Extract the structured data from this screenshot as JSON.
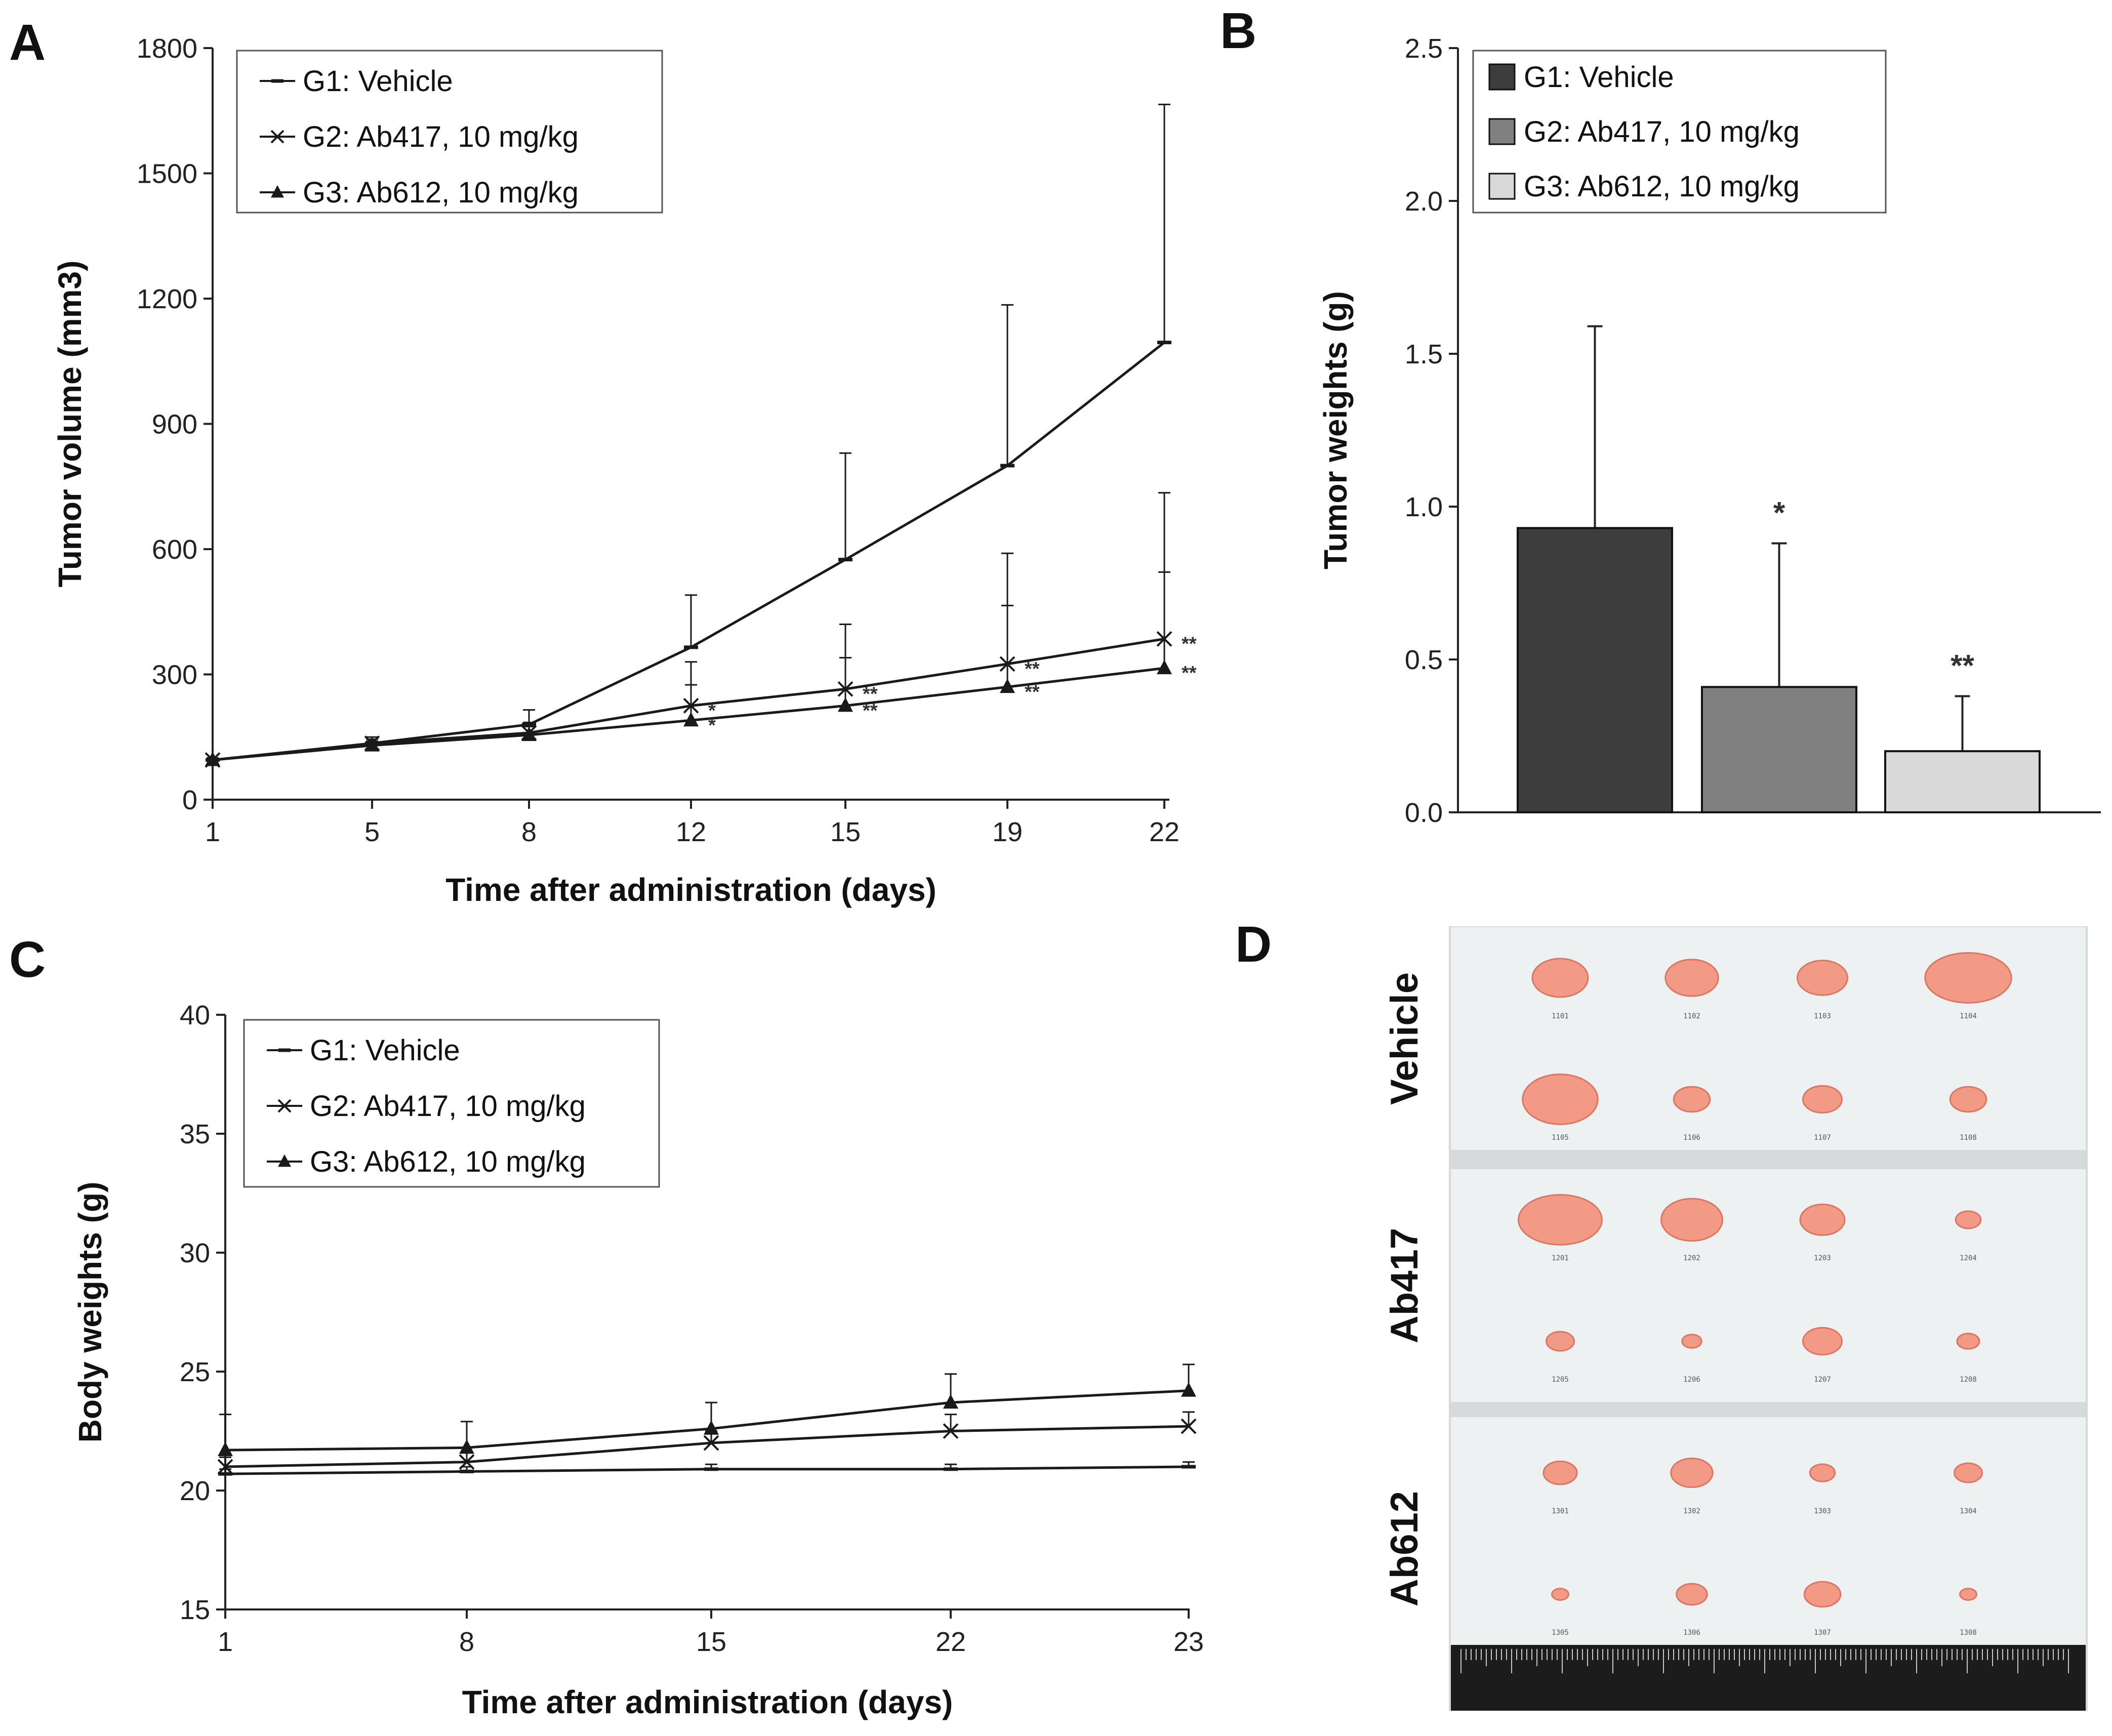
{
  "panels": {
    "A": "A",
    "B": "B",
    "C": "C",
    "D": "D"
  },
  "colors": {
    "line": "#1a1a1a",
    "bar_g1": "#3d3d3d",
    "bar_g2": "#808080",
    "bar_g3": "#d9d9d9",
    "photo_bg": "#eef1f2",
    "tumor": "#f29a86",
    "ruler": "#1c1c1c"
  },
  "chart_data": [
    {
      "panel": "A",
      "type": "line",
      "xlabel": "Time after administration (days)",
      "ylabel": "Tumor volume (mm3)",
      "ylim": [
        0,
        1800
      ],
      "yticks": [
        "0",
        "300",
        "600",
        "900",
        "1200",
        "1500",
        "1800"
      ],
      "categories": [
        "1",
        "5",
        "8",
        "12",
        "15",
        "19",
        "22"
      ],
      "legend_position": "top-left",
      "series": [
        {
          "name": "G1: Vehicle",
          "marker": "dash",
          "values": [
            95,
            135,
            180,
            365,
            575,
            800,
            1095
          ],
          "err_upper": [
            5,
            15,
            35,
            125,
            255,
            385,
            570
          ]
        },
        {
          "name": "G2: Ab417, 10 mg/kg",
          "marker": "x",
          "values": [
            95,
            135,
            160,
            225,
            265,
            325,
            385
          ],
          "err_upper": [
            5,
            10,
            25,
            105,
            155,
            265,
            350
          ]
        },
        {
          "name": "G3: Ab612, 10 mg/kg",
          "marker": "triangle",
          "values": [
            95,
            130,
            155,
            190,
            225,
            270,
            315
          ],
          "err_upper": [
            5,
            10,
            20,
            85,
            115,
            195,
            230
          ]
        }
      ],
      "annotations": [
        {
          "series": 1,
          "index": 3,
          "text": "*"
        },
        {
          "series": 1,
          "index": 4,
          "text": "**"
        },
        {
          "series": 1,
          "index": 5,
          "text": "**"
        },
        {
          "series": 1,
          "index": 6,
          "text": "**"
        },
        {
          "series": 2,
          "index": 3,
          "text": "*"
        },
        {
          "series": 2,
          "index": 4,
          "text": "**"
        },
        {
          "series": 2,
          "index": 5,
          "text": "**"
        },
        {
          "series": 2,
          "index": 6,
          "text": "**"
        }
      ]
    },
    {
      "panel": "B",
      "type": "bar",
      "ylabel": "Tumor weights (g)",
      "ylim": [
        0,
        2.5
      ],
      "yticks": [
        "0.0",
        "0.5",
        "1.0",
        "1.5",
        "2.0",
        "2.5"
      ],
      "legend_position": "top-left",
      "series": [
        {
          "name": "G1: Vehicle",
          "value": 0.93,
          "err_upper": 0.66,
          "sig": ""
        },
        {
          "name": "G2: Ab417, 10 mg/kg",
          "value": 0.41,
          "err_upper": 0.47,
          "sig": "*"
        },
        {
          "name": "G3: Ab612, 10 mg/kg",
          "value": 0.2,
          "err_upper": 0.18,
          "sig": "**"
        }
      ]
    },
    {
      "panel": "C",
      "type": "line",
      "xlabel": "Time after administration (days)",
      "ylabel": "Body weights (g)",
      "ylim": [
        15,
        40
      ],
      "yticks": [
        "15",
        "20",
        "25",
        "30",
        "35",
        "40"
      ],
      "categories": [
        "1",
        "8",
        "15",
        "22",
        "23"
      ],
      "legend_position": "top-left",
      "series": [
        {
          "name": "G1: Vehicle",
          "marker": "dash",
          "values": [
            20.7,
            20.8,
            20.9,
            20.9,
            21.0
          ],
          "err_upper": [
            0.2,
            0.2,
            0.2,
            0.2,
            0.2
          ]
        },
        {
          "name": "G2: Ab417, 10 mg/kg",
          "marker": "x",
          "values": [
            21.0,
            21.2,
            22.0,
            22.5,
            22.7
          ],
          "err_upper": [
            0.4,
            0.4,
            0.5,
            0.7,
            0.6
          ]
        },
        {
          "name": "G3: Ab612, 10 mg/kg",
          "marker": "triangle",
          "values": [
            21.7,
            21.8,
            22.6,
            23.7,
            24.2
          ],
          "err_upper": [
            1.5,
            1.1,
            1.1,
            1.2,
            1.1
          ]
        }
      ]
    }
  ],
  "photo": {
    "rows": [
      {
        "label": "Vehicle",
        "ids": [
          "1101",
          "1102",
          "1103",
          "1104",
          "1105",
          "1106",
          "1107",
          "1108"
        ],
        "sizes": [
          1.0,
          0.95,
          0.9,
          1.55,
          1.35,
          0.65,
          0.7,
          0.65
        ]
      },
      {
        "label": "Ab417",
        "ids": [
          "1201",
          "1202",
          "1203",
          "1204",
          "1205",
          "1206",
          "1207",
          "1208"
        ],
        "sizes": [
          1.5,
          1.1,
          0.8,
          0.45,
          0.5,
          0.35,
          0.7,
          0.4
        ]
      },
      {
        "label": "Ab612",
        "ids": [
          "1301",
          "1302",
          "1303",
          "1304",
          "1305",
          "1306",
          "1307",
          "1308"
        ],
        "sizes": [
          0.6,
          0.75,
          0.45,
          0.5,
          0.3,
          0.55,
          0.65,
          0.3
        ]
      }
    ]
  }
}
